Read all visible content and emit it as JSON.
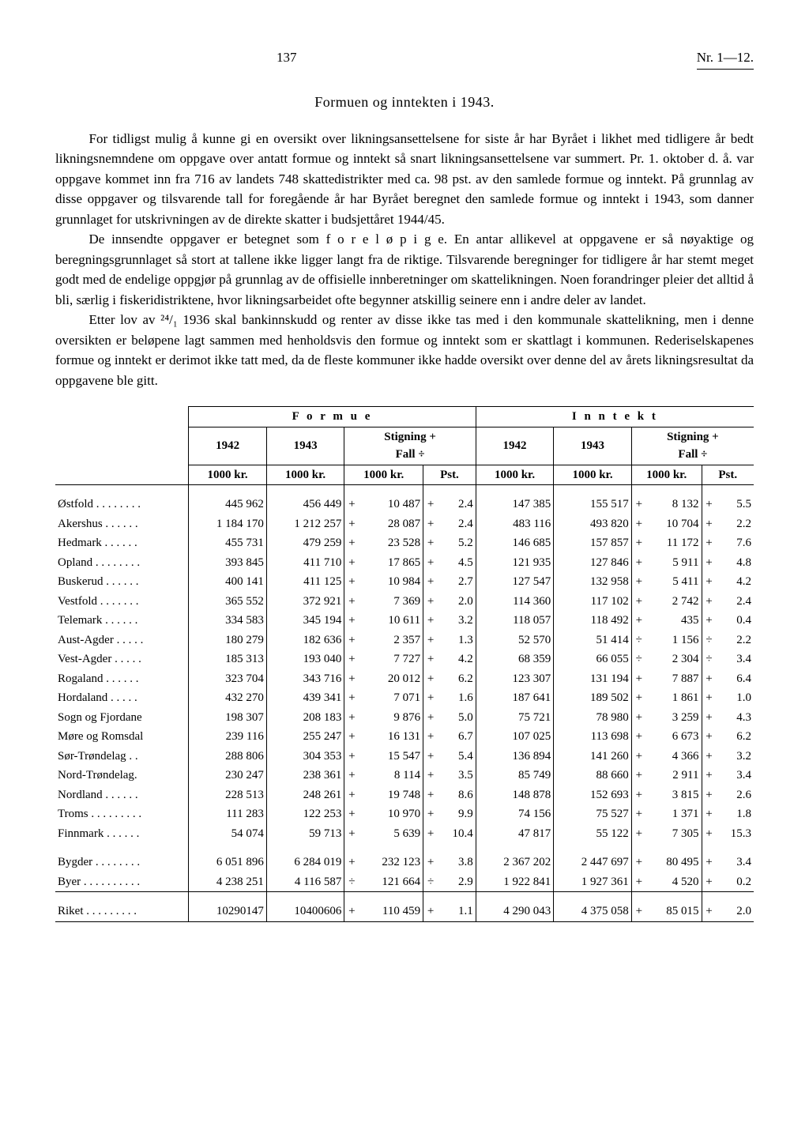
{
  "page_number": "137",
  "issue": "Nr. 1—12.",
  "title": "Formuen og inntekten i 1943.",
  "paragraphs": [
    "For tidligst mulig å kunne gi en oversikt over likningsansettelsene for siste år har Byrået i likhet med tidligere år bedt likningsnemndene om oppgave over antatt formue og inntekt så snart likningsansettelsene var summert. Pr. 1. oktober d. å. var oppgave kommet inn fra 716 av landets 748 skattedistrikter med ca. 98 pst. av den samlede formue og inntekt. På grunnlag av disse oppgaver og tilsvarende tall for foregående år har Byrået beregnet den samlede formue og inntekt i 1943, som danner grunnlaget for utskrivningen av de direkte skatter i budsjettåret 1944/45.",
    "De innsendte oppgaver er betegnet som f o r e l ø p i g e. En antar allikevel at oppgavene er så nøyaktige og beregningsgrunnlaget så stort at tallene ikke ligger langt fra de riktige. Tilsvarende beregninger for tidligere år har stemt meget godt med de endelige oppgjør på grunnlag av de offisielle innberetninger om skattelikningen. Noen forandringer pleier det alltid å bli, særlig i fiskeridistriktene, hvor likningsarbeidet ofte begynner atskillig seinere enn i andre deler av landet.",
    "Etter lov av ²⁴/₁ 1936 skal bankinnskudd og renter av disse ikke tas med i den kommunale skattelikning, men i denne oversikten er beløpene lagt sammen med henholdsvis den formue og inntekt som er skattlagt i kommunen. Rederiselskapenes formue og inntekt er derimot ikke tatt med, da de fleste kommuner ikke hadde oversikt over denne del av årets likningsresultat da oppgavene ble gitt."
  ],
  "table": {
    "group_headers": [
      "F o r m u e",
      "I n n t e k t"
    ],
    "col_1942": "1942",
    "col_1943": "1943",
    "col_change": "Stigning +\nFall ÷",
    "unit_1000kr": "1000 kr.",
    "unit_pst": "Pst.",
    "rows": [
      {
        "region": "Østfold . . . . . . . .",
        "f42": "445 962",
        "f43": "456 449",
        "fcs": "+",
        "fc": "10 487",
        "fps": "+",
        "fp": "2.4",
        "i42": "147 385",
        "i43": "155 517",
        "ics": "+",
        "ic": "8 132",
        "ips": "+",
        "ip": "5.5"
      },
      {
        "region": "Akershus . . . . . .",
        "f42": "1 184 170",
        "f43": "1 212 257",
        "fcs": "+",
        "fc": "28 087",
        "fps": "+",
        "fp": "2.4",
        "i42": "483 116",
        "i43": "493 820",
        "ics": "+",
        "ic": "10 704",
        "ips": "+",
        "ip": "2.2"
      },
      {
        "region": "Hedmark . . . . . .",
        "f42": "455 731",
        "f43": "479 259",
        "fcs": "+",
        "fc": "23 528",
        "fps": "+",
        "fp": "5.2",
        "i42": "146 685",
        "i43": "157 857",
        "ics": "+",
        "ic": "11 172",
        "ips": "+",
        "ip": "7.6"
      },
      {
        "region": "Opland . . . . . . . .",
        "f42": "393 845",
        "f43": "411 710",
        "fcs": "+",
        "fc": "17 865",
        "fps": "+",
        "fp": "4.5",
        "i42": "121 935",
        "i43": "127 846",
        "ics": "+",
        "ic": "5 911",
        "ips": "+",
        "ip": "4.8"
      },
      {
        "region": "Buskerud . . . . . .",
        "f42": "400 141",
        "f43": "411 125",
        "fcs": "+",
        "fc": "10 984",
        "fps": "+",
        "fp": "2.7",
        "i42": "127 547",
        "i43": "132 958",
        "ics": "+",
        "ic": "5 411",
        "ips": "+",
        "ip": "4.2"
      },
      {
        "region": "Vestfold . . . . . . .",
        "f42": "365 552",
        "f43": "372 921",
        "fcs": "+",
        "fc": "7 369",
        "fps": "+",
        "fp": "2.0",
        "i42": "114 360",
        "i43": "117 102",
        "ics": "+",
        "ic": "2 742",
        "ips": "+",
        "ip": "2.4"
      },
      {
        "region": "Telemark . . . . . .",
        "f42": "334 583",
        "f43": "345 194",
        "fcs": "+",
        "fc": "10 611",
        "fps": "+",
        "fp": "3.2",
        "i42": "118 057",
        "i43": "118 492",
        "ics": "+",
        "ic": "435",
        "ips": "+",
        "ip": "0.4"
      },
      {
        "region": "Aust-Agder . . . . .",
        "f42": "180 279",
        "f43": "182 636",
        "fcs": "+",
        "fc": "2 357",
        "fps": "+",
        "fp": "1.3",
        "i42": "52 570",
        "i43": "51 414",
        "ics": "÷",
        "ic": "1 156",
        "ips": "÷",
        "ip": "2.2"
      },
      {
        "region": "Vest-Agder . . . . .",
        "f42": "185 313",
        "f43": "193 040",
        "fcs": "+",
        "fc": "7 727",
        "fps": "+",
        "fp": "4.2",
        "i42": "68 359",
        "i43": "66 055",
        "ics": "÷",
        "ic": "2 304",
        "ips": "÷",
        "ip": "3.4"
      },
      {
        "region": "Rogaland . . . . . .",
        "f42": "323 704",
        "f43": "343 716",
        "fcs": "+",
        "fc": "20 012",
        "fps": "+",
        "fp": "6.2",
        "i42": "123 307",
        "i43": "131 194",
        "ics": "+",
        "ic": "7 887",
        "ips": "+",
        "ip": "6.4"
      },
      {
        "region": "Hordaland . . . . .",
        "f42": "432 270",
        "f43": "439 341",
        "fcs": "+",
        "fc": "7 071",
        "fps": "+",
        "fp": "1.6",
        "i42": "187 641",
        "i43": "189 502",
        "ics": "+",
        "ic": "1 861",
        "ips": "+",
        "ip": "1.0"
      },
      {
        "region": "Sogn og Fjordane",
        "f42": "198 307",
        "f43": "208 183",
        "fcs": "+",
        "fc": "9 876",
        "fps": "+",
        "fp": "5.0",
        "i42": "75 721",
        "i43": "78 980",
        "ics": "+",
        "ic": "3 259",
        "ips": "+",
        "ip": "4.3"
      },
      {
        "region": "Møre og Romsdal",
        "f42": "239 116",
        "f43": "255 247",
        "fcs": "+",
        "fc": "16 131",
        "fps": "+",
        "fp": "6.7",
        "i42": "107 025",
        "i43": "113 698",
        "ics": "+",
        "ic": "6 673",
        "ips": "+",
        "ip": "6.2"
      },
      {
        "region": "Sør-Trøndelag . .",
        "f42": "288 806",
        "f43": "304 353",
        "fcs": "+",
        "fc": "15 547",
        "fps": "+",
        "fp": "5.4",
        "i42": "136 894",
        "i43": "141 260",
        "ics": "+",
        "ic": "4 366",
        "ips": "+",
        "ip": "3.2"
      },
      {
        "region": "Nord-Trøndelag.",
        "f42": "230 247",
        "f43": "238 361",
        "fcs": "+",
        "fc": "8 114",
        "fps": "+",
        "fp": "3.5",
        "i42": "85 749",
        "i43": "88 660",
        "ics": "+",
        "ic": "2 911",
        "ips": "+",
        "ip": "3.4"
      },
      {
        "region": "Nordland . . . . . .",
        "f42": "228 513",
        "f43": "248 261",
        "fcs": "+",
        "fc": "19 748",
        "fps": "+",
        "fp": "8.6",
        "i42": "148 878",
        "i43": "152 693",
        "ics": "+",
        "ic": "3 815",
        "ips": "+",
        "ip": "2.6"
      },
      {
        "region": "Troms . . . . . . . . .",
        "f42": "111 283",
        "f43": "122 253",
        "fcs": "+",
        "fc": "10 970",
        "fps": "+",
        "fp": "9.9",
        "i42": "74 156",
        "i43": "75 527",
        "ics": "+",
        "ic": "1 371",
        "ips": "+",
        "ip": "1.8"
      },
      {
        "region": "Finnmark . . . . . .",
        "f42": "54 074",
        "f43": "59 713",
        "fcs": "+",
        "fc": "5 639",
        "fps": "+",
        "fp": "10.4",
        "i42": "47 817",
        "i43": "55 122",
        "ics": "+",
        "ic": "7 305",
        "ips": "+",
        "ip": "15.3"
      }
    ],
    "subtotals": [
      {
        "region": "Bygder . . . . . . . .",
        "f42": "6 051 896",
        "f43": "6 284 019",
        "fcs": "+",
        "fc": "232 123",
        "fps": "+",
        "fp": "3.8",
        "i42": "2 367 202",
        "i43": "2 447 697",
        "ics": "+",
        "ic": "80 495",
        "ips": "+",
        "ip": "3.4"
      },
      {
        "region": "Byer . . . . . . . . . .",
        "f42": "4 238 251",
        "f43": "4 116 587",
        "fcs": "÷",
        "fc": "121 664",
        "fps": "÷",
        "fp": "2.9",
        "i42": "1 922 841",
        "i43": "1 927 361",
        "ics": "+",
        "ic": "4 520",
        "ips": "+",
        "ip": "0.2"
      }
    ],
    "total": {
      "region": "Riket . . . . . . . . .",
      "f42": "10290147",
      "f43": "10400606",
      "fcs": "+",
      "fc": "110 459",
      "fps": "+",
      "fp": "1.1",
      "i42": "4 290 043",
      "i43": "4 375 058",
      "ics": "+",
      "ic": "85 015",
      "ips": "+",
      "ip": "2.0"
    }
  }
}
